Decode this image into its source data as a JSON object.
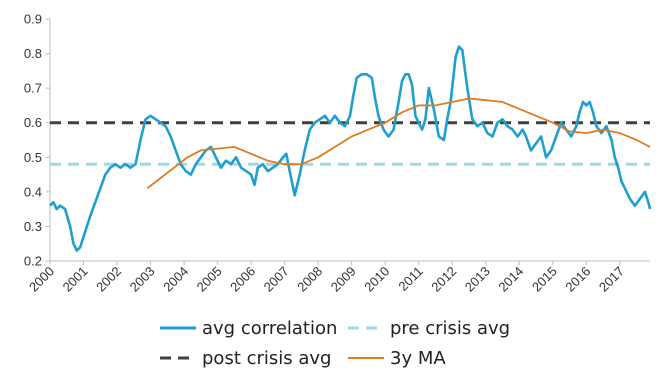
{
  "chart_data": {
    "type": "line",
    "title": "",
    "xlabel": "",
    "ylabel": "",
    "xlim": [
      2000,
      2017.9
    ],
    "ylim": [
      0.2,
      0.9
    ],
    "y_ticks": [
      "0.2",
      "0.3",
      "0.4",
      "0.5",
      "0.6",
      "0.7",
      "0.8",
      "0.9"
    ],
    "x_ticks": [
      "2000",
      "2001",
      "2002",
      "2003",
      "2004",
      "2005",
      "2006",
      "2007",
      "2008",
      "2009",
      "2010",
      "2011",
      "2012",
      "2013",
      "2014",
      "2015",
      "2016",
      "2017"
    ],
    "grid": false,
    "legend_position": "bottom",
    "series": [
      {
        "name": "avg correlation",
        "style": "solid",
        "color": "#1f9fd0",
        "x": [
          2000.0,
          2000.1,
          2000.2,
          2000.3,
          2000.45,
          2000.6,
          2000.7,
          2000.8,
          2000.9,
          2001.0,
          2001.1,
          2001.2,
          2001.35,
          2001.5,
          2001.65,
          2001.8,
          2001.95,
          2002.1,
          2002.25,
          2002.4,
          2002.55,
          2002.7,
          2002.85,
          2003.0,
          2003.15,
          2003.3,
          2003.45,
          2003.6,
          2003.75,
          2003.9,
          2004.05,
          2004.2,
          2004.35,
          2004.5,
          2004.65,
          2004.8,
          2004.95,
          2005.1,
          2005.25,
          2005.4,
          2005.55,
          2005.7,
          2005.85,
          2006.0,
          2006.1,
          2006.2,
          2006.35,
          2006.5,
          2006.65,
          2006.8,
          2006.95,
          2007.05,
          2007.15,
          2007.3,
          2007.45,
          2007.6,
          2007.75,
          2007.9,
          2008.05,
          2008.2,
          2008.35,
          2008.5,
          2008.65,
          2008.8,
          2008.95,
          2009.05,
          2009.15,
          2009.3,
          2009.45,
          2009.6,
          2009.7,
          2009.8,
          2009.95,
          2010.1,
          2010.25,
          2010.4,
          2010.5,
          2010.6,
          2010.7,
          2010.8,
          2010.9,
          2011.0,
          2011.1,
          2011.2,
          2011.3,
          2011.45,
          2011.6,
          2011.75,
          2011.85,
          2011.95,
          2012.1,
          2012.2,
          2012.3,
          2012.45,
          2012.6,
          2012.75,
          2012.9,
          2013.05,
          2013.2,
          2013.35,
          2013.5,
          2013.65,
          2013.8,
          2013.95,
          2014.1,
          2014.2,
          2014.35,
          2014.5,
          2014.65,
          2014.8,
          2014.95,
          2015.1,
          2015.25,
          2015.4,
          2015.55,
          2015.7,
          2015.8,
          2015.9,
          2016.0,
          2016.1,
          2016.2,
          2016.3,
          2016.45,
          2016.6,
          2016.75,
          2016.85,
          2016.95,
          2017.05,
          2017.15,
          2017.3,
          2017.45,
          2017.6,
          2017.75,
          2017.85,
          2017.9
        ],
        "y": [
          0.36,
          0.37,
          0.35,
          0.36,
          0.35,
          0.3,
          0.25,
          0.23,
          0.24,
          0.27,
          0.3,
          0.33,
          0.37,
          0.41,
          0.45,
          0.47,
          0.48,
          0.47,
          0.48,
          0.47,
          0.48,
          0.55,
          0.61,
          0.62,
          0.61,
          0.6,
          0.59,
          0.56,
          0.52,
          0.48,
          0.46,
          0.45,
          0.48,
          0.5,
          0.52,
          0.53,
          0.5,
          0.47,
          0.49,
          0.48,
          0.5,
          0.47,
          0.46,
          0.45,
          0.42,
          0.47,
          0.48,
          0.46,
          0.47,
          0.48,
          0.5,
          0.51,
          0.46,
          0.39,
          0.45,
          0.52,
          0.58,
          0.6,
          0.61,
          0.62,
          0.6,
          0.62,
          0.6,
          0.59,
          0.62,
          0.68,
          0.73,
          0.74,
          0.74,
          0.73,
          0.67,
          0.62,
          0.58,
          0.56,
          0.58,
          0.66,
          0.72,
          0.74,
          0.74,
          0.71,
          0.62,
          0.6,
          0.58,
          0.61,
          0.7,
          0.64,
          0.56,
          0.55,
          0.61,
          0.66,
          0.79,
          0.82,
          0.81,
          0.7,
          0.61,
          0.59,
          0.6,
          0.57,
          0.56,
          0.6,
          0.61,
          0.59,
          0.58,
          0.56,
          0.58,
          0.56,
          0.52,
          0.54,
          0.56,
          0.5,
          0.52,
          0.56,
          0.6,
          0.58,
          0.56,
          0.59,
          0.63,
          0.66,
          0.65,
          0.66,
          0.63,
          0.59,
          0.57,
          0.59,
          0.55,
          0.5,
          0.47,
          0.43,
          0.41,
          0.38,
          0.36,
          0.38,
          0.4,
          0.37,
          0.35
        ]
      },
      {
        "name": "pre crisis avg",
        "style": "dashed",
        "color": "#9fd8ea",
        "x": [
          2000,
          2017.9
        ],
        "y": [
          0.48,
          0.48
        ]
      },
      {
        "name": "post crisis avg",
        "style": "dashed",
        "color": "#404040",
        "x": [
          2000,
          2017.9
        ],
        "y": [
          0.6,
          0.6
        ]
      },
      {
        "name": "3y MA",
        "style": "solid",
        "color": "#e07b20",
        "x": [
          2002.9,
          2003.3,
          2003.7,
          2004.1,
          2004.5,
          2005.0,
          2005.5,
          2006.0,
          2006.5,
          2007.0,
          2007.5,
          2008.0,
          2008.5,
          2009.0,
          2009.5,
          2010.0,
          2010.5,
          2011.0,
          2011.5,
          2012.0,
          2012.5,
          2013.0,
          2013.5,
          2014.0,
          2014.5,
          2015.0,
          2015.5,
          2016.0,
          2016.5,
          2017.0,
          2017.5,
          2017.9
        ],
        "y": [
          0.41,
          0.44,
          0.47,
          0.5,
          0.52,
          0.525,
          0.53,
          0.51,
          0.49,
          0.48,
          0.48,
          0.5,
          0.53,
          0.56,
          0.58,
          0.6,
          0.63,
          0.65,
          0.65,
          0.66,
          0.67,
          0.665,
          0.66,
          0.64,
          0.62,
          0.6,
          0.575,
          0.57,
          0.58,
          0.57,
          0.55,
          0.53
        ]
      }
    ]
  }
}
